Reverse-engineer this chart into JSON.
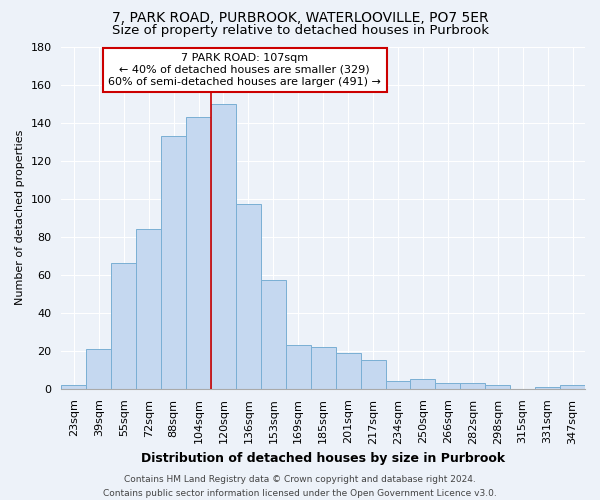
{
  "title": "7, PARK ROAD, PURBROOK, WATERLOOVILLE, PO7 5ER",
  "subtitle": "Size of property relative to detached houses in Purbrook",
  "xlabel": "Distribution of detached houses by size in Purbrook",
  "ylabel": "Number of detached properties",
  "categories": [
    "23sqm",
    "39sqm",
    "55sqm",
    "72sqm",
    "88sqm",
    "104sqm",
    "120sqm",
    "136sqm",
    "153sqm",
    "169sqm",
    "185sqm",
    "201sqm",
    "217sqm",
    "234sqm",
    "250sqm",
    "266sqm",
    "282sqm",
    "298sqm",
    "315sqm",
    "331sqm",
    "347sqm"
  ],
  "values": [
    2,
    21,
    66,
    84,
    133,
    143,
    150,
    97,
    57,
    23,
    22,
    19,
    15,
    4,
    5,
    3,
    3,
    2,
    0,
    1,
    2
  ],
  "bar_color": "#c5d8f0",
  "bar_edge_color": "#7aafd4",
  "vline_x": 5.5,
  "vline_color": "#cc0000",
  "annotation_line1": "7 PARK ROAD: 107sqm",
  "annotation_line2": "← 40% of detached houses are smaller (329)",
  "annotation_line3": "60% of semi-detached houses are larger (491) →",
  "annotation_box_color": "#ffffff",
  "annotation_box_edge_color": "#cc0000",
  "footer_line1": "Contains HM Land Registry data © Crown copyright and database right 2024.",
  "footer_line2": "Contains public sector information licensed under the Open Government Licence v3.0.",
  "ylim": [
    0,
    180
  ],
  "yticks": [
    0,
    20,
    40,
    60,
    80,
    100,
    120,
    140,
    160,
    180
  ],
  "background_color": "#edf2f9",
  "grid_color": "#ffffff",
  "title_fontsize": 10,
  "subtitle_fontsize": 9.5,
  "axis_label_fontsize": 9,
  "ylabel_fontsize": 8,
  "tick_fontsize": 8,
  "annotation_fontsize": 8,
  "footer_fontsize": 6.5
}
